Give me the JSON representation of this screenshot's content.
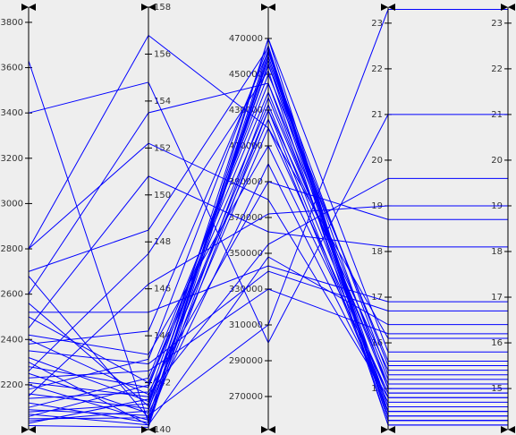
{
  "chart_data": {
    "type": "parallel",
    "color": "#0000ff",
    "axes": [
      {
        "ylim": [
          2002,
          3867
        ],
        "yticks": [
          2200,
          2400,
          2600,
          2800,
          3000,
          3200,
          3400,
          3600,
          3800
        ]
      },
      {
        "ylim": [
          140,
          158
        ],
        "yticks": [
          140,
          142,
          144,
          146,
          148,
          150,
          152,
          154,
          156,
          158
        ]
      },
      {
        "ylim": [
          251500,
          487500
        ],
        "yticks": [
          270000,
          290000,
          310000,
          330000,
          350000,
          370000,
          390000,
          410000,
          430000,
          450000,
          470000
        ]
      },
      {
        "ylim": [
          14.1,
          23.35
        ],
        "yticks": [
          15,
          16,
          17,
          18,
          19,
          20,
          21,
          22,
          23
        ]
      },
      {
        "ylim": [
          14.1,
          23.35
        ],
        "yticks": [
          15,
          16,
          17,
          18,
          19,
          20,
          21,
          22,
          23
        ]
      }
    ],
    "rows": [
      [
        3630,
        140.3,
        430000,
        14.5,
        14.5
      ],
      [
        3400,
        154.8,
        300000,
        21.0,
        21.0
      ],
      [
        2800,
        156.8,
        420000,
        16.1,
        16.1
      ],
      [
        2800,
        152.2,
        380000,
        14.8,
        14.8
      ],
      [
        2700,
        148.5,
        465000,
        14.3,
        14.3
      ],
      [
        2680,
        140.5,
        460000,
        14.6,
        14.6
      ],
      [
        2600,
        153.5,
        445000,
        15.2,
        15.2
      ],
      [
        2560,
        141.0,
        456000,
        14.4,
        14.4
      ],
      [
        2500,
        142.0,
        440000,
        15.0,
        15.0
      ],
      [
        2450,
        150.8,
        362000,
        18.1,
        18.1
      ],
      [
        2420,
        143.2,
        410000,
        14.9,
        14.9
      ],
      [
        2400,
        141.5,
        355000,
        19.6,
        19.6
      ],
      [
        2380,
        144.2,
        463000,
        14.2,
        14.2
      ],
      [
        2350,
        142.8,
        340000,
        16.7,
        16.7
      ],
      [
        2320,
        141.2,
        430000,
        15.4,
        15.4
      ],
      [
        2300,
        140.2,
        470000,
        14.3,
        14.3
      ],
      [
        2280,
        141.8,
        450000,
        15.6,
        15.6
      ],
      [
        2250,
        140.7,
        400000,
        14.7,
        14.7
      ],
      [
        2230,
        142.5,
        330000,
        16.2,
        16.2
      ],
      [
        2210,
        141.4,
        458000,
        14.5,
        14.5
      ],
      [
        2200,
        140.4,
        437000,
        15.1,
        15.1
      ],
      [
        2180,
        143.0,
        466000,
        14.4,
        14.4
      ],
      [
        2160,
        140.9,
        420000,
        14.9,
        14.9
      ],
      [
        2140,
        141.6,
        390000,
        18.7,
        18.7
      ],
      [
        2120,
        140.3,
        462000,
        15.3,
        15.3
      ],
      [
        2100,
        142.2,
        445000,
        14.6,
        14.6
      ],
      [
        2090,
        140.6,
        310000,
        23.3,
        23.3
      ],
      [
        2080,
        141.1,
        455000,
        15.5,
        15.5
      ],
      [
        2070,
        140.2,
        348000,
        16.4,
        16.4
      ],
      [
        2060,
        141.9,
        433000,
        14.8,
        14.8
      ],
      [
        2050,
        140.5,
        464000,
        14.3,
        14.3
      ],
      [
        2040,
        140.8,
        470000,
        15.8,
        15.8
      ],
      [
        2030,
        141.3,
        425000,
        14.5,
        14.5
      ],
      [
        2020,
        140.1,
        460000,
        15.0,
        15.0
      ],
      [
        2150,
        146.2,
        372000,
        19.0,
        19.0
      ],
      [
        2260,
        147.5,
        452000,
        14.2,
        14.2
      ],
      [
        2520,
        145.0,
        343000,
        16.9,
        16.9
      ]
    ]
  }
}
